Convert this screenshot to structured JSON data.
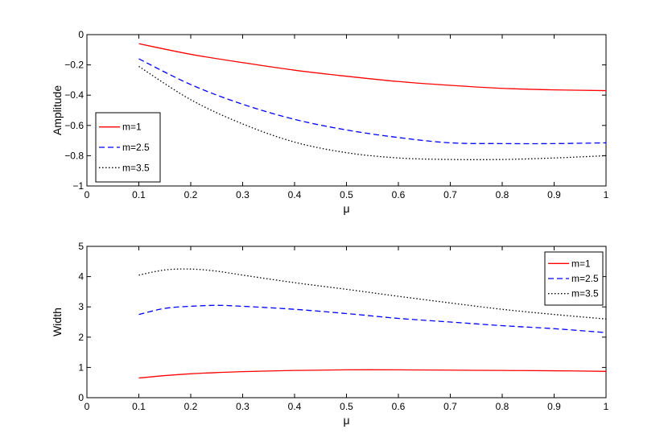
{
  "chart_data": [
    {
      "type": "line",
      "xlabel": "μ",
      "ylabel": "Amplitude",
      "xlim": [
        0,
        1
      ],
      "ylim": [
        -1,
        0
      ],
      "xticks": [
        0,
        0.1,
        0.2,
        0.3,
        0.4,
        0.5,
        0.6,
        0.7,
        0.8,
        0.9,
        1
      ],
      "xtick_labels": [
        "0",
        "0.1",
        "0.2",
        "0.3",
        "0.4",
        "0.5",
        "0.6",
        "0.7",
        "0.8",
        "0.9",
        "1"
      ],
      "yticks": [
        -1,
        -0.8,
        -0.6,
        -0.4,
        -0.2,
        0
      ],
      "ytick_labels": [
        "−1",
        "−0.8",
        "−0.6",
        "−0.4",
        "−0.2",
        "0"
      ],
      "grid": false,
      "legend_position": "lower-left",
      "x": [
        0.1,
        0.2,
        0.3,
        0.4,
        0.5,
        0.6,
        0.7,
        0.8,
        0.9,
        1.0
      ],
      "series": [
        {
          "name": "m=1",
          "color": "#ff0000",
          "dash": "solid",
          "values": [
            -0.06,
            -0.13,
            -0.185,
            -0.235,
            -0.275,
            -0.31,
            -0.335,
            -0.355,
            -0.365,
            -0.37
          ]
        },
        {
          "name": "m=2.5",
          "color": "#0000ff",
          "dash": "dashed",
          "values": [
            -0.16,
            -0.33,
            -0.46,
            -0.56,
            -0.63,
            -0.68,
            -0.715,
            -0.72,
            -0.72,
            -0.715
          ]
        },
        {
          "name": "m=3.5",
          "color": "#000000",
          "dash": "dotted",
          "values": [
            -0.21,
            -0.43,
            -0.59,
            -0.71,
            -0.78,
            -0.815,
            -0.825,
            -0.825,
            -0.815,
            -0.8
          ]
        }
      ]
    },
    {
      "type": "line",
      "xlabel": "μ",
      "ylabel": "Width",
      "xlim": [
        0,
        1
      ],
      "ylim": [
        0,
        5
      ],
      "xticks": [
        0,
        0.1,
        0.2,
        0.3,
        0.4,
        0.5,
        0.6,
        0.7,
        0.8,
        0.9,
        1
      ],
      "xtick_labels": [
        "0",
        "0.1",
        "0.2",
        "0.3",
        "0.4",
        "0.5",
        "0.6",
        "0.7",
        "0.8",
        "0.9",
        "1"
      ],
      "yticks": [
        0,
        1,
        2,
        3,
        4,
        5
      ],
      "ytick_labels": [
        "0",
        "1",
        "2",
        "3",
        "4",
        "5"
      ],
      "grid": false,
      "legend_position": "top-right",
      "x": [
        0.1,
        0.15,
        0.2,
        0.25,
        0.3,
        0.4,
        0.5,
        0.6,
        0.7,
        0.8,
        0.9,
        1.0
      ],
      "series": [
        {
          "name": "m=1",
          "color": "#ff0000",
          "dash": "solid",
          "values": [
            0.65,
            0.73,
            0.79,
            0.83,
            0.86,
            0.9,
            0.92,
            0.92,
            0.91,
            0.9,
            0.89,
            0.87
          ]
        },
        {
          "name": "m=2.5",
          "color": "#0000ff",
          "dash": "dashed",
          "values": [
            2.75,
            2.95,
            3.02,
            3.05,
            3.02,
            2.92,
            2.78,
            2.62,
            2.5,
            2.38,
            2.28,
            2.15
          ]
        },
        {
          "name": "m=3.5",
          "color": "#000000",
          "dash": "dotted",
          "values": [
            4.05,
            4.22,
            4.25,
            4.18,
            4.05,
            3.8,
            3.58,
            3.35,
            3.13,
            2.92,
            2.75,
            2.6
          ]
        }
      ]
    }
  ]
}
